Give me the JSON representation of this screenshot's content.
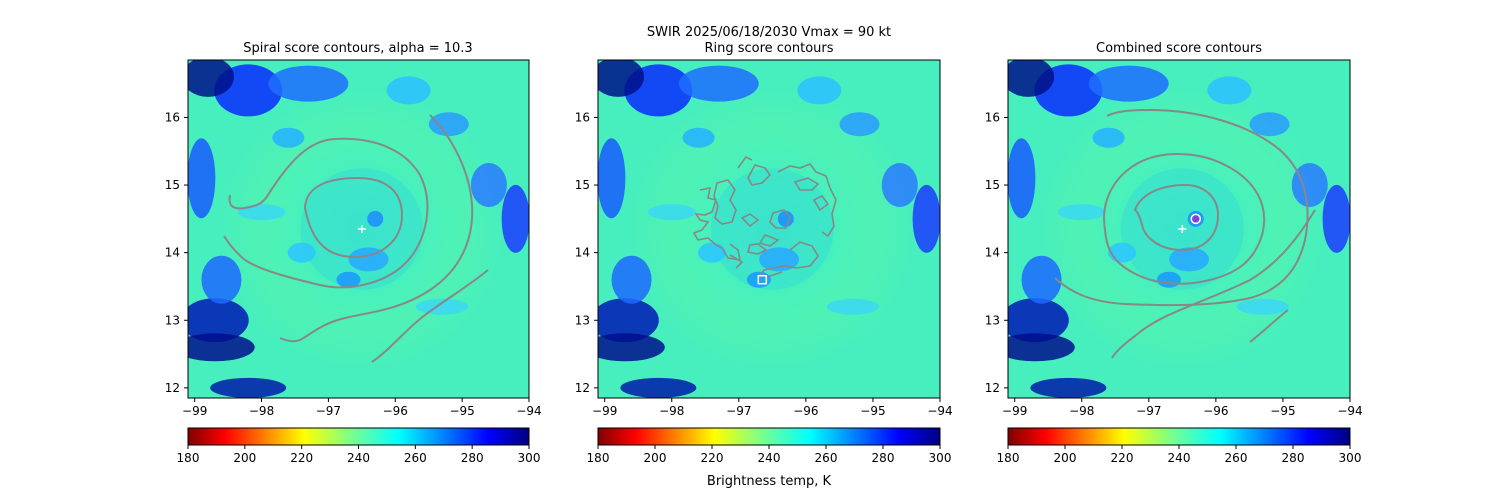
{
  "suptitle": {
    "line1": "SWIR  2025/06/18/2030    Vmax = 90 kt"
  },
  "colors": {
    "contour": "#888888",
    "marker": "#ffffff",
    "combined_marker_fill": "#7b45d6"
  },
  "chart_data": [
    {
      "type": "heatmap",
      "title": "Spiral score contours, alpha = 10.3",
      "xlim": [
        -99.1,
        -94.0
      ],
      "ylim": [
        11.85,
        16.85
      ],
      "xticks": [
        -99,
        -98,
        -97,
        -96,
        -95,
        -94
      ],
      "yticks": [
        12,
        13,
        14,
        15,
        16
      ],
      "grid": false,
      "center": {
        "lon": -96.5,
        "lat": 14.35
      },
      "markers": [
        {
          "shape": "plus",
          "lon": -96.5,
          "lat": 14.35
        }
      ]
    },
    {
      "type": "heatmap",
      "title": "Ring score contours",
      "xlim": [
        -99.1,
        -94.0
      ],
      "ylim": [
        11.85,
        16.85
      ],
      "xticks": [
        -99,
        -98,
        -97,
        -96,
        -95,
        -94
      ],
      "yticks": [
        12,
        13,
        14,
        15,
        16
      ],
      "grid": false,
      "center": {
        "lon": -96.5,
        "lat": 14.35
      },
      "markers": [
        {
          "shape": "square",
          "lon": -96.65,
          "lat": 13.6
        }
      ]
    },
    {
      "type": "heatmap",
      "title": "Combined score contours",
      "xlim": [
        -99.1,
        -94.0
      ],
      "ylim": [
        11.85,
        16.85
      ],
      "xticks": [
        -99,
        -98,
        -97,
        -96,
        -95,
        -94
      ],
      "yticks": [
        12,
        13,
        14,
        15,
        16
      ],
      "grid": false,
      "center": {
        "lon": -96.5,
        "lat": 14.35
      },
      "markers": [
        {
          "shape": "plus",
          "lon": -96.5,
          "lat": 14.35
        },
        {
          "shape": "circle",
          "lon": -96.3,
          "lat": 14.5
        }
      ]
    }
  ],
  "colorbar": {
    "range": [
      180,
      300
    ],
    "ticks": [
      180,
      200,
      220,
      240,
      260,
      280,
      300
    ],
    "label": "Brightness temp, K",
    "colormap": "jet_r"
  }
}
